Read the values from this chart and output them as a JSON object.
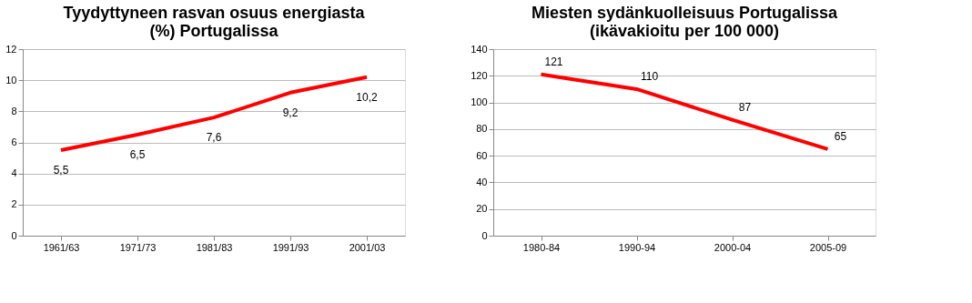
{
  "chart_data": [
    {
      "type": "line",
      "title": "Tyydyttyneen rasvan osuus energiasta\n(%) Portugalissa",
      "categories": [
        "1961/63",
        "1971/73",
        "1981/83",
        "1991/93",
        "2001/03"
      ],
      "series": [
        {
          "color": "#ff0000",
          "values": [
            5.5,
            6.5,
            7.6,
            9.2,
            10.2
          ],
          "value_labels": [
            "5,5",
            "6,5",
            "7,6",
            "9,2",
            "10,2"
          ]
        }
      ],
      "ylim": [
        0,
        12
      ],
      "yticks": [
        0,
        2,
        4,
        6,
        8,
        10,
        12
      ],
      "grid": "y",
      "marker": "none",
      "line_style": "solid"
    },
    {
      "type": "line",
      "title": "Miesten sydänkuolleisuus Portugalissa\n(ikävakioitu per 100 000)",
      "categories": [
        "1980-84",
        "1990-94",
        "2000-04",
        "2005-09"
      ],
      "series": [
        {
          "color": "#ff0000",
          "values": [
            121,
            110,
            87,
            65
          ]
        }
      ],
      "ylim": [
        0,
        140
      ],
      "yticks": [
        0,
        20,
        40,
        60,
        80,
        100,
        120,
        140
      ],
      "grid": "y",
      "marker": "none",
      "line_style": "solid",
      "data_labels": true
    }
  ]
}
